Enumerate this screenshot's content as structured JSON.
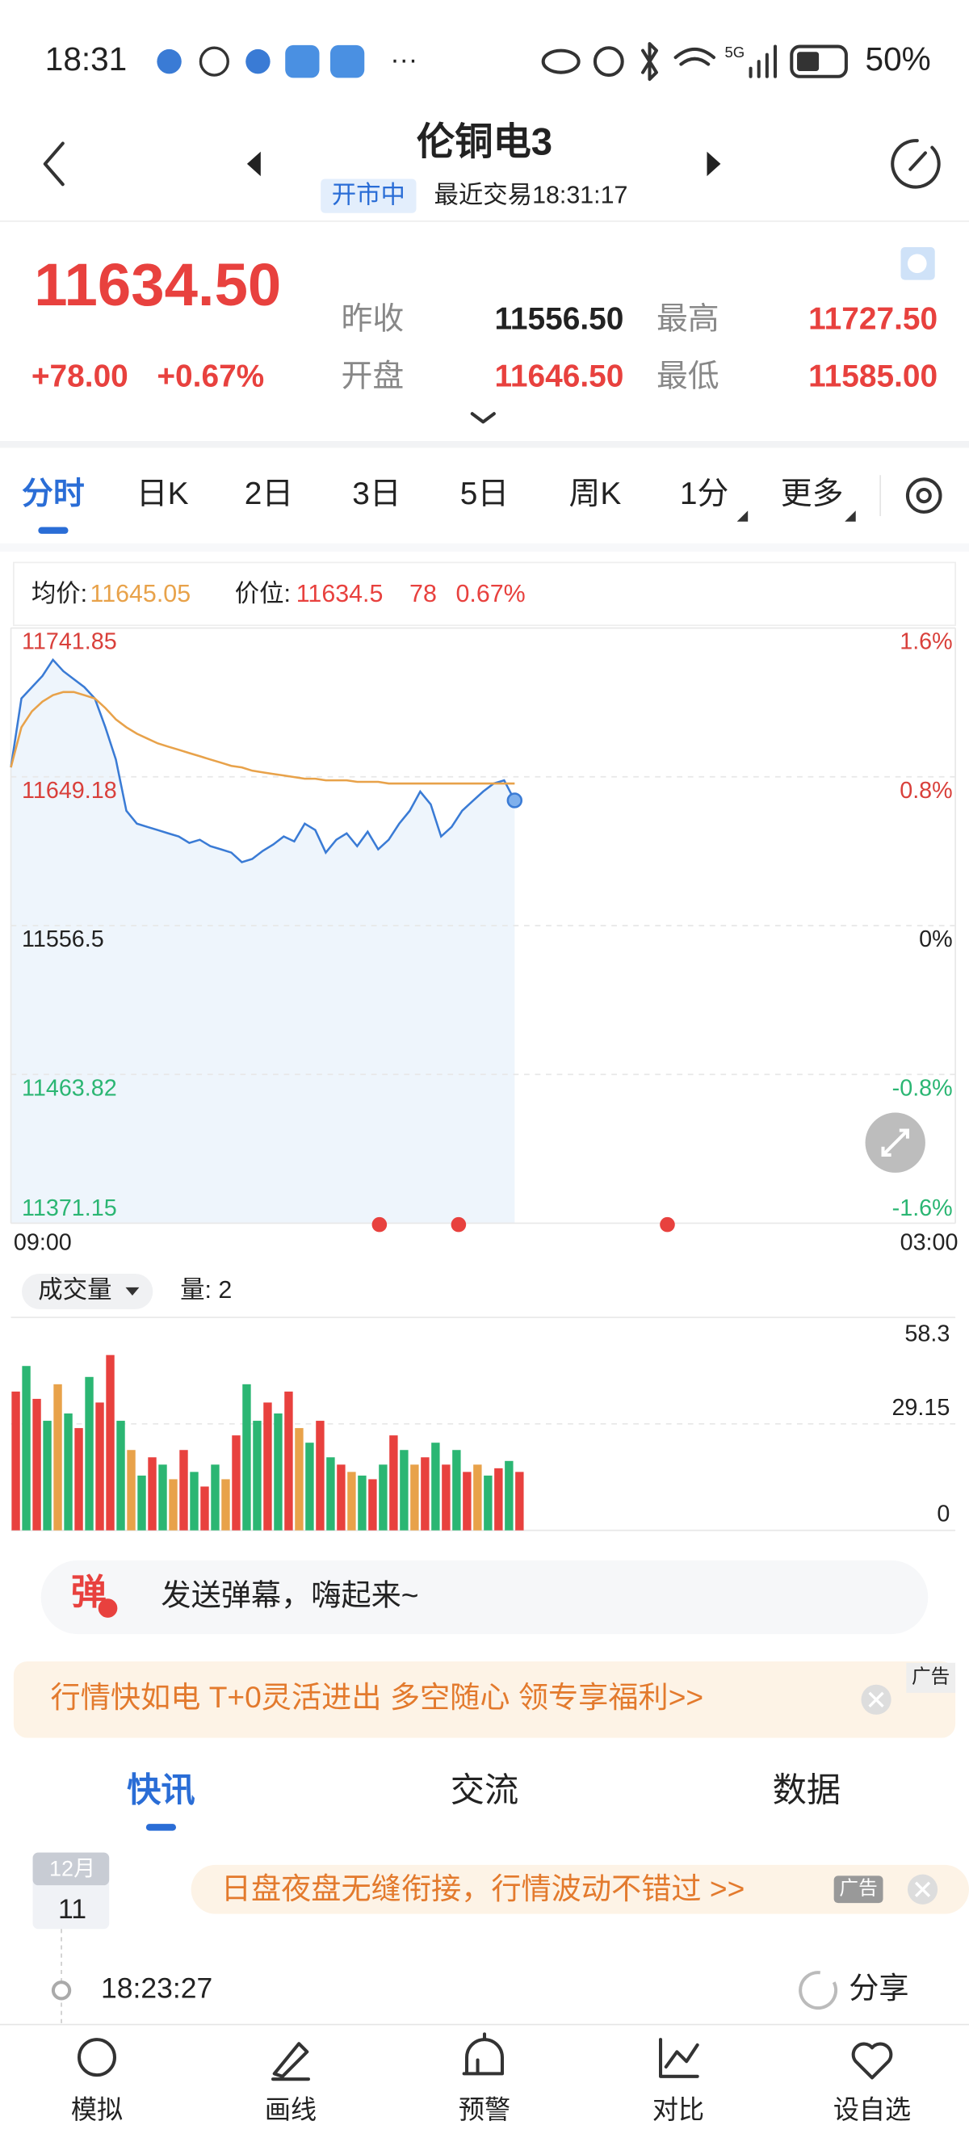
{
  "status_bar": {
    "time": "18:31",
    "network": "5G",
    "battery": "50%"
  },
  "header": {
    "title": "伦铜电3",
    "status": "开市中",
    "last_trade": "最近交易18:31:17"
  },
  "quote": {
    "price": "11634.50",
    "change": "+78.00",
    "change_pct": "+0.67%",
    "fields": [
      {
        "label": "昨收",
        "value": "11556.50"
      },
      {
        "label": "最高",
        "value": "11727.50"
      },
      {
        "label": "开盘",
        "value": "11646.50"
      },
      {
        "label": "最低",
        "value": "11585.00"
      }
    ]
  },
  "tabs": [
    "分时",
    "日K",
    "2日",
    "3日",
    "5日",
    "周K",
    "1分",
    "更多"
  ],
  "info": {
    "avg_label": "均价:",
    "avg": "11645.05",
    "price_label": "价位:",
    "price": "11634.5",
    "change": "78",
    "change_pct": "0.67%"
  },
  "chart_data": [
    {
      "type": "line",
      "x": [
        0,
        12,
        24,
        36,
        48,
        60,
        72,
        84,
        96,
        108,
        120,
        132,
        144,
        156,
        168,
        180,
        192,
        204,
        216,
        228,
        240,
        252,
        264,
        276,
        288,
        300,
        312,
        324,
        336,
        348,
        360,
        372,
        384,
        396,
        408,
        420,
        432,
        444,
        456,
        468,
        480,
        492,
        504,
        516,
        528,
        540,
        552,
        564,
        576
      ],
      "xlim": [
        0,
        1080
      ],
      "xticks": [
        {
          "value": 0,
          "label": "09:00"
        },
        {
          "value": 1080,
          "label": "03:00"
        }
      ],
      "ylim": [
        11371.15,
        11741.85
      ],
      "yticks": [
        11371.15,
        11463.82,
        11556.5,
        11649.18,
        11741.85
      ],
      "y2lim": [
        -1.6,
        1.6
      ],
      "y2ticks": [
        {
          "value": -1.6,
          "label": "-1.6%"
        },
        {
          "value": -0.8,
          "label": "-0.8%"
        },
        {
          "value": 0,
          "label": "0%"
        },
        {
          "value": 0.8,
          "label": "0.8%"
        },
        {
          "value": 1.6,
          "label": "1.6%"
        }
      ],
      "grid": true,
      "area_color": "#eef5fc",
      "series": [
        {
          "color": "#3a7bd5",
          "values": [
            11655,
            11698,
            11705,
            11712,
            11722,
            11715,
            11710,
            11705,
            11698,
            11680,
            11660,
            11628,
            11620,
            11618,
            11616,
            11614,
            11612,
            11608,
            11610,
            11606,
            11604,
            11602,
            11596,
            11598,
            11603,
            11607,
            11612,
            11609,
            11620,
            11616,
            11602,
            11610,
            11614,
            11606,
            11615,
            11604,
            11610,
            11620,
            11628,
            11640,
            11632,
            11612,
            11618,
            11628,
            11634,
            11640,
            11645,
            11647,
            11634.5
          ]
        },
        {
          "color": "#e8a24a",
          "values": [
            11655,
            11680,
            11690,
            11696,
            11700,
            11702,
            11702,
            11700,
            11698,
            11692,
            11685,
            11680,
            11676,
            11673,
            11670,
            11668,
            11666,
            11664,
            11662,
            11660,
            11658,
            11656,
            11655,
            11653,
            11652,
            11651,
            11650,
            11649,
            11648,
            11648,
            11647,
            11647,
            11647,
            11646,
            11646,
            11646,
            11645,
            11645,
            11645,
            11645,
            11645,
            11645,
            11645,
            11645,
            11645,
            11645,
            11645,
            11645,
            11645.05
          ]
        }
      ]
    },
    {
      "type": "bar",
      "label": "成交量",
      "volume_text": "量: 2",
      "x": [
        0,
        12,
        24,
        36,
        48,
        60,
        72,
        84,
        96,
        108,
        120,
        132,
        144,
        156,
        168,
        180,
        192,
        204,
        216,
        228,
        240,
        252,
        264,
        276,
        288,
        300,
        312,
        324,
        336,
        348,
        360,
        372,
        384,
        396,
        408,
        420,
        432,
        444,
        456,
        468,
        480,
        492,
        504,
        516,
        528,
        540,
        552,
        564,
        576
      ],
      "xlim": [
        0,
        1080
      ],
      "ylim": [
        0,
        58.3
      ],
      "yticks": [
        0,
        29.15,
        58.3
      ],
      "grid": true,
      "values": [
        38,
        45,
        36,
        30,
        40,
        32,
        28,
        42,
        35,
        48,
        30,
        22,
        15,
        20,
        18,
        14,
        22,
        16,
        12,
        18,
        14,
        26,
        40,
        30,
        35,
        32,
        38,
        28,
        24,
        30,
        20,
        18,
        16,
        15,
        14,
        18,
        26,
        22,
        18,
        20,
        24,
        18,
        22,
        16,
        18,
        15,
        17,
        19,
        16
      ],
      "colors": [
        "#e8413e",
        "#2bb673",
        "#e8413e",
        "#2bb673",
        "#e8a24a",
        "#2bb673",
        "#e8413e",
        "#2bb673",
        "#e8413e",
        "#e8413e",
        "#2bb673",
        "#e8a24a",
        "#2bb673",
        "#e8413e",
        "#2bb673",
        "#e8a24a",
        "#e8413e",
        "#2bb673",
        "#e8413e",
        "#2bb673",
        "#e8a24a",
        "#e8413e",
        "#2bb673",
        "#2bb673",
        "#e8413e",
        "#2bb673",
        "#e8413e",
        "#e8a24a",
        "#2bb673",
        "#e8413e",
        "#2bb673",
        "#e8413e",
        "#e8a24a",
        "#2bb673",
        "#e8413e",
        "#2bb673",
        "#e8413e",
        "#2bb673",
        "#e8a24a",
        "#e8413e",
        "#2bb673",
        "#e8413e",
        "#2bb673",
        "#e8413e",
        "#e8a24a",
        "#2bb673",
        "#e8413e",
        "#2bb673",
        "#e8413e"
      ]
    }
  ],
  "danmaku": {
    "icon": "弹",
    "placeholder": "发送弹幕，嗨起来~"
  },
  "ad_banner": {
    "text": "行情快如电 T+0灵活进出 多空随心 领专享福利>>",
    "tag": "广告"
  },
  "news_tabs": [
    "快讯",
    "交流",
    "数据"
  ],
  "news": {
    "month": "12月",
    "day": "11",
    "ad": "日盘夜盘无缝衔接，行情波动不错过 >>",
    "ad_tag": "广告",
    "time": "18:23:27",
    "share": "分享"
  },
  "bottom_nav": [
    "模拟",
    "画线",
    "预警",
    "对比",
    "设自选"
  ]
}
